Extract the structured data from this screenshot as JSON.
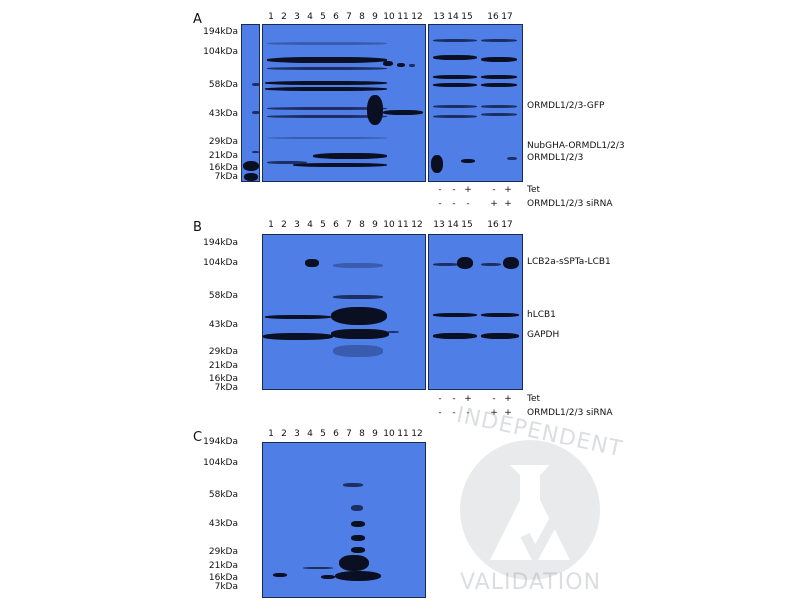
{
  "panels": [
    {
      "letter": "A"
    },
    {
      "letter": "B"
    },
    {
      "letter": "C"
    }
  ],
  "markers": [
    "194kDa",
    "104kDa",
    "58kDa",
    "43kDa",
    "29kDa",
    "21kDa",
    "16kDa",
    "7kDa"
  ],
  "lanes_left": [
    "1",
    "2",
    "3",
    "4",
    "5",
    "6",
    "7",
    "8",
    "9",
    "10",
    "11",
    "12"
  ],
  "lanes_right": [
    "13",
    "14",
    "15",
    "16",
    "17"
  ],
  "annotations": {
    "a_gfp": "ORMDL1/2/3-GFP",
    "a_nub": "NubGHA-ORMDL1/2/3",
    "a_ormdl": "ORMDL1/2/3",
    "b_lcb2a": "LCB2a-sSPTa-LCB1",
    "b_hlcb1": "hLCB1",
    "b_gapdh": "GAPDH"
  },
  "conditions": {
    "tet_label": "Tet",
    "sirna_label": "ORMDL1/2/3 siRNA",
    "tet_signs": [
      "-",
      "-",
      "+",
      "-",
      "+"
    ],
    "sirna_signs": [
      "-",
      "-",
      "-",
      "+",
      "+"
    ]
  },
  "watermark": {
    "top": "INDEPENDENT",
    "bottom": "VALIDATION"
  }
}
